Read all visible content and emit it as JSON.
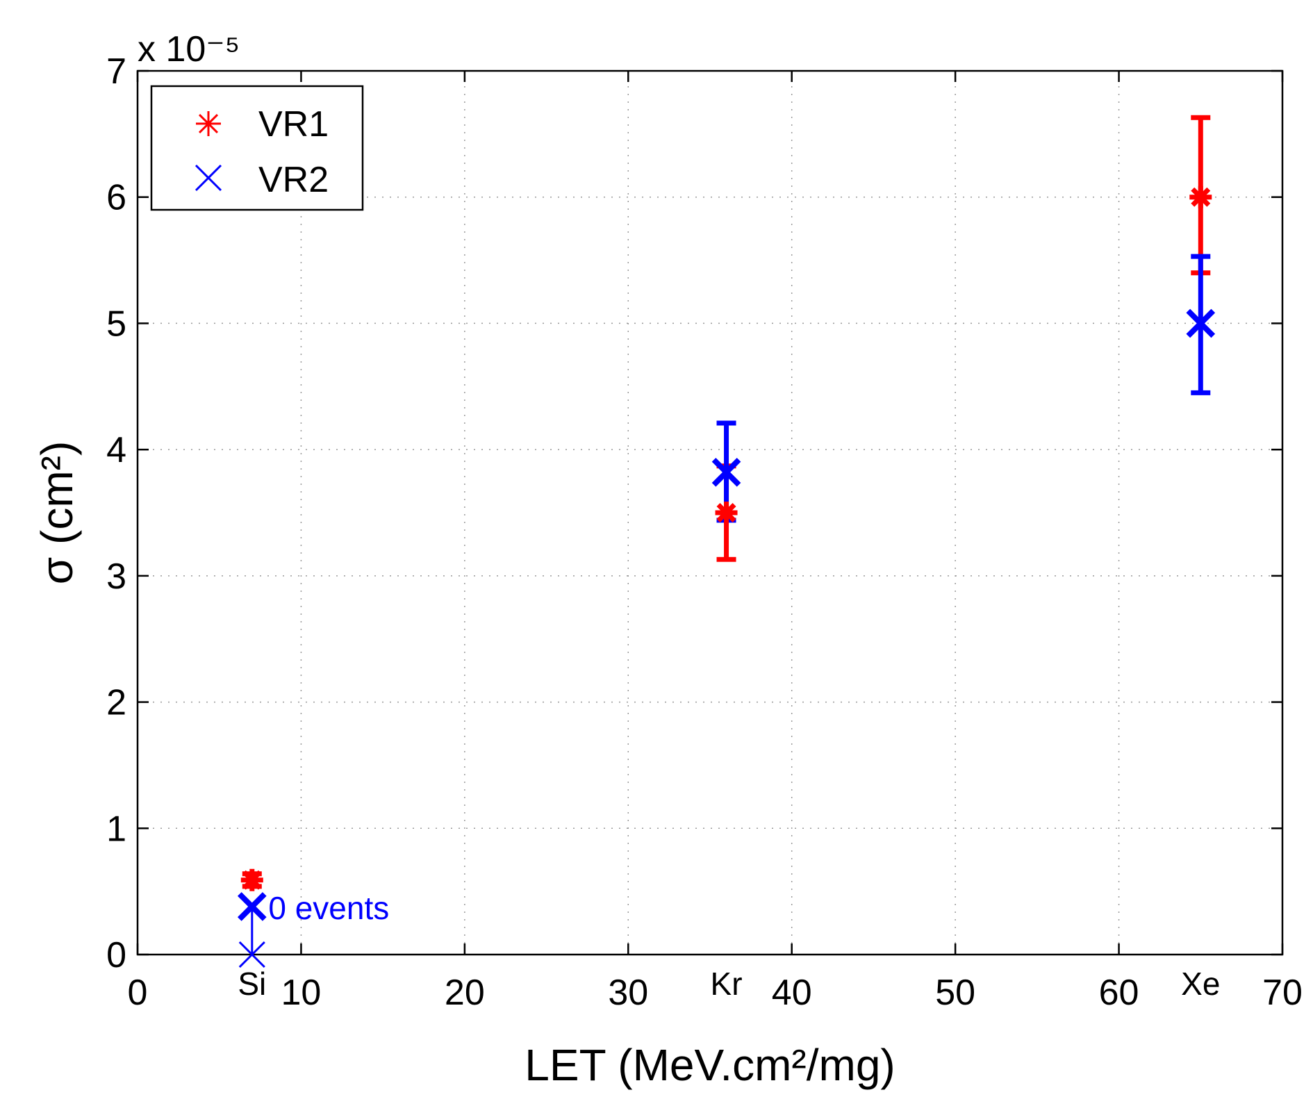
{
  "chart_data": {
    "type": "scatter",
    "title": "",
    "xlabel": "LET (MeV.cm²/mg)",
    "ylabel": "σ (cm²)",
    "xlim": [
      0,
      70
    ],
    "ylim": [
      0,
      7
    ],
    "y_scale_label": "x 10⁻⁵",
    "x_ticks": [
      "0",
      "10",
      "20",
      "30",
      "40",
      "50",
      "60",
      "70"
    ],
    "y_ticks": [
      "0",
      "1",
      "2",
      "3",
      "4",
      "5",
      "6",
      "7"
    ],
    "grid": true,
    "legend_position": "top-left",
    "series": [
      {
        "name": "VR1",
        "marker": "asterisk",
        "color": "#ff0000",
        "points": [
          {
            "x": 7,
            "y": 0.59,
            "err_low": 0.54,
            "err_high": 0.64
          },
          {
            "x": 36,
            "y": 3.5,
            "err_low": 3.13,
            "err_high": 3.87
          },
          {
            "x": 65,
            "y": 6.0,
            "err_low": 5.4,
            "err_high": 6.63
          }
        ]
      },
      {
        "name": "VR2",
        "marker": "x",
        "color": "#0000ff",
        "points": [
          {
            "x": 7,
            "y": 0.38,
            "err_low": 0.0,
            "err_high": 0.38,
            "upper_limit": true
          },
          {
            "x": 36,
            "y": 3.82,
            "err_low": 3.44,
            "err_high": 4.21
          },
          {
            "x": 65,
            "y": 5.0,
            "err_low": 4.45,
            "err_high": 5.53
          }
        ]
      }
    ],
    "annotations": [
      {
        "text": "Si",
        "x": 7
      },
      {
        "text": "Kr",
        "x": 36
      },
      {
        "text": "Xe",
        "x": 65
      },
      {
        "text": "0 events",
        "x": 8,
        "y": 0.28,
        "color": "#0000ff"
      }
    ]
  }
}
